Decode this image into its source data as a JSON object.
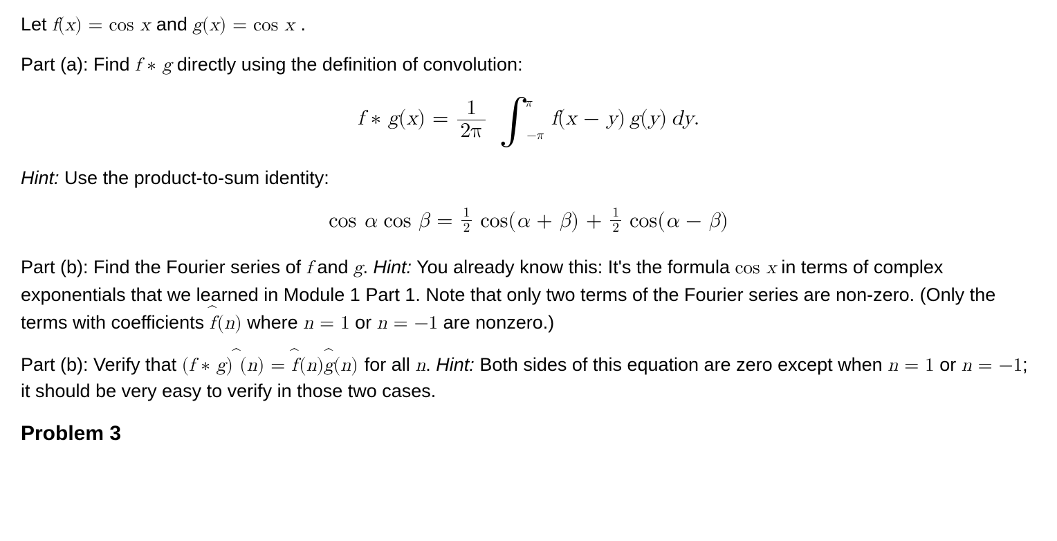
{
  "intro": {
    "lead": "Let ",
    "f_def": "f(x) = cos x",
    "mid": " and ",
    "g_def": "g(x) = cos x",
    "end": "."
  },
  "part_a": {
    "label": "Part (a): Find ",
    "fg": "f ∗ g",
    "after": " directly using the definition of convolution:"
  },
  "conv_def": {
    "lhs": "f ∗ g(x) = ",
    "frac_n": "1",
    "frac_d": "2π",
    "int_u": "π",
    "int_l": "−π",
    "integrand": " f(x − y) g(y) dy."
  },
  "hint1": {
    "label": "Hint:",
    "text": " Use the product-to-sum identity:"
  },
  "identity": {
    "lhs": "cos α cos β = ",
    "half_n": "1",
    "half_d": "2",
    "t1": " cos(α + β) + ",
    "t2": " cos(α − β)"
  },
  "part_b1": {
    "label": "Part (b): Find the Fourier series of ",
    "f": "f",
    "and": " and ",
    "g": "g",
    "period": ". ",
    "hint_label": "Hint:",
    "hint_text": " You already know this: It's the formula ",
    "cosx": "cos x",
    "after_cosx": " in terms of complex exponentials that we learned in Module 1 Part 1. Note that only two terms of the Fourier series are non-zero. (Only the terms with coefficients ",
    "fhat": "f",
    "fhat_arg": " (n)",
    "where": " where ",
    "n1": "n = 1",
    "or": " or ",
    "nm1": "n = −1",
    "tail": " are nonzero.)"
  },
  "part_b2": {
    "label": "Part (b): Verify that ",
    "lhs_open": "(f ∗ g)",
    "lhs_arg": "(n) = ",
    "fhat": "f",
    "farg": " (n)",
    "ghat": "g",
    "garg": "(n)",
    "forall": " for all ",
    "n": "n",
    "period": ". ",
    "hint_label": "Hint:",
    "hint_text": " Both sides of this equation are zero except when ",
    "n1": "n = 1",
    "or": " or ",
    "nm1": "n = −1",
    "tail": "; it should be very easy to verify in those two cases."
  },
  "truncated": "Problem 3"
}
